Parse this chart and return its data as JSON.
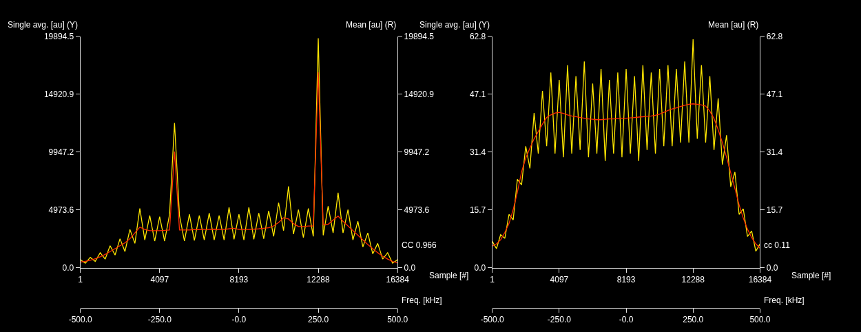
{
  "chart_data": [
    {
      "type": "line",
      "ylabel": "Single avg. [au] (Y)",
      "y2label": "Mean [au] (R)",
      "xlabel": "Sample [#]",
      "x2label": "Freq. [kHz]",
      "x": [
        1,
        256,
        512,
        768,
        1024,
        1280,
        1536,
        1792,
        2048,
        2304,
        2560,
        2816,
        3072,
        3328,
        3584,
        3840,
        4096,
        4352,
        4608,
        4864,
        5120,
        5376,
        5632,
        5888,
        6144,
        6400,
        6656,
        6912,
        7168,
        7424,
        7680,
        7936,
        8192,
        8448,
        8704,
        8960,
        9216,
        9472,
        9728,
        9984,
        10240,
        10496,
        10752,
        11008,
        11264,
        11520,
        11776,
        12032,
        12288,
        12544,
        12800,
        13056,
        13312,
        13568,
        13824,
        14080,
        14336,
        14592,
        14848,
        15104,
        15360,
        15616,
        15872,
        16128,
        16384
      ],
      "series": [
        {
          "color": "#ffe600",
          "axis": "y",
          "values": [
            700,
            400,
            900,
            550,
            1300,
            750,
            1900,
            1100,
            2500,
            1400,
            3300,
            2100,
            5100,
            2400,
            4500,
            2300,
            4400,
            2300,
            4600,
            12450,
            4500,
            2300,
            4600,
            2350,
            4500,
            2400,
            4700,
            2400,
            4500,
            2400,
            5200,
            2450,
            4600,
            2400,
            5200,
            2450,
            4700,
            2500,
            4900,
            2700,
            5600,
            3200,
            7000,
            2900,
            5000,
            2600,
            5100,
            2700,
            19730,
            2800,
            5300,
            3000,
            6450,
            3000,
            5000,
            2400,
            4000,
            1800,
            3000,
            1200,
            2100,
            750,
            1300,
            400,
            700
          ]
        },
        {
          "color": "#ff2a00",
          "axis": "y2",
          "values": [
            500,
            560,
            650,
            780,
            950,
            1150,
            1400,
            1650,
            1900,
            2150,
            2500,
            3000,
            3500,
            3300,
            3200,
            3200,
            3200,
            3220,
            3250,
            10000,
            3250,
            3250,
            3250,
            3280,
            3280,
            3300,
            3300,
            3320,
            3300,
            3300,
            3350,
            3400,
            3300,
            3300,
            3300,
            3320,
            3350,
            3400,
            3450,
            3600,
            3900,
            4300,
            4200,
            3800,
            3550,
            3550,
            3600,
            3600,
            16800,
            3700,
            3750,
            4100,
            4450,
            4000,
            3600,
            3200,
            2800,
            2400,
            2000,
            1650,
            1300,
            1000,
            750,
            550,
            420
          ]
        }
      ],
      "xlim": [
        1,
        16384
      ],
      "xticks": [
        1,
        4097,
        8193,
        12288,
        16384
      ],
      "x2lim": [
        -500,
        500
      ],
      "x2ticks": [
        {
          "value": -500,
          "label": "-500.0"
        },
        {
          "value": -250,
          "label": "-250.0"
        },
        {
          "value": 0,
          "label": "-0.0"
        },
        {
          "value": 250,
          "label": "250.0"
        },
        {
          "value": 500,
          "label": "500.0"
        }
      ],
      "ylim": [
        0,
        19894.5
      ],
      "yticks": [
        {
          "value": 0,
          "label": "0.0"
        },
        4973.6,
        9947.2,
        14920.9,
        19894.5
      ],
      "y2lim": [
        0,
        19894.5
      ],
      "y2ticks": [
        {
          "value": 0,
          "label": "0.0"
        },
        4973.6,
        9947.2,
        14920.9,
        19894.5
      ],
      "annotations": [
        "CC 0.966"
      ]
    },
    {
      "type": "line",
      "ylabel": "Single avg. [au] (Y)",
      "y2label": "Mean [au] (R)",
      "xlabel": "Sample [#]",
      "x2label": "Freq. [kHz]",
      "x": [
        1,
        256,
        512,
        768,
        1024,
        1280,
        1536,
        1792,
        2048,
        2304,
        2560,
        2816,
        3072,
        3328,
        3584,
        3840,
        4096,
        4352,
        4608,
        4864,
        5120,
        5376,
        5632,
        5888,
        6144,
        6400,
        6656,
        6912,
        7168,
        7424,
        7680,
        7936,
        8192,
        8448,
        8704,
        8960,
        9216,
        9472,
        9728,
        9984,
        10240,
        10496,
        10752,
        11008,
        11264,
        11520,
        11776,
        12032,
        12288,
        12544,
        12800,
        13056,
        13312,
        13568,
        13824,
        14080,
        14336,
        14592,
        14848,
        15104,
        15360,
        15616,
        15872,
        16128,
        16384
      ],
      "series": [
        {
          "color": "#ffe600",
          "axis": "y",
          "values": [
            7.2,
            5.2,
            9.0,
            8.0,
            14.5,
            13.0,
            24,
            22.5,
            33,
            27,
            42,
            31,
            48,
            33,
            53,
            31,
            51,
            30,
            55,
            31,
            52,
            32,
            56,
            30,
            50,
            31,
            54,
            29,
            51,
            31,
            53,
            30,
            54,
            31,
            52,
            29,
            55,
            32,
            53,
            31,
            54,
            33,
            55,
            33,
            54,
            34,
            56,
            34,
            62,
            35,
            55,
            34,
            52,
            32,
            46,
            28,
            36,
            22,
            26,
            14.5,
            16,
            8.5,
            10,
            4.5,
            6.5
          ]
        },
        {
          "color": "#ff2a00",
          "axis": "y2",
          "values": [
            5.9,
            6.5,
            7.6,
            9.6,
            12.0,
            15.8,
            20.5,
            26,
            29.8,
            32.5,
            35,
            37,
            39,
            40.8,
            41.5,
            42,
            42.2,
            41.9,
            41.5,
            41.2,
            41,
            40.8,
            40.6,
            40.4,
            40.3,
            40.2,
            40.2,
            40.3,
            40.4,
            40.4,
            40.5,
            40.6,
            40.6,
            40.7,
            40.8,
            40.9,
            41,
            41.1,
            41.2,
            41.4,
            41.7,
            42.2,
            42.7,
            43.1,
            43.4,
            43.8,
            44.1,
            44.4,
            44.5,
            44.4,
            44.2,
            43.9,
            42.5,
            40.5,
            37.5,
            34,
            30,
            25.8,
            21.5,
            17.1,
            13.5,
            10.5,
            8.2,
            6.5,
            5.3
          ]
        }
      ],
      "xlim": [
        1,
        16384
      ],
      "xticks": [
        1,
        4097,
        8193,
        12288,
        16384
      ],
      "x2lim": [
        -500,
        500
      ],
      "x2ticks": [
        {
          "value": -500,
          "label": "-500.0"
        },
        {
          "value": -250,
          "label": "-250.0"
        },
        {
          "value": 0,
          "label": "-0.0"
        },
        {
          "value": 250,
          "label": "250.0"
        },
        {
          "value": 500,
          "label": "500.0"
        }
      ],
      "ylim": [
        0,
        62.8
      ],
      "yticks": [
        {
          "value": 0,
          "label": "0.0"
        },
        15.7,
        31.4,
        47.1,
        62.8
      ],
      "y2lim": [
        0,
        62.8
      ],
      "y2ticks": [
        {
          "value": 0,
          "label": "0.0"
        },
        15.7,
        31.4,
        47.1,
        62.8
      ],
      "annotations": [
        "cc 0.11"
      ]
    }
  ]
}
